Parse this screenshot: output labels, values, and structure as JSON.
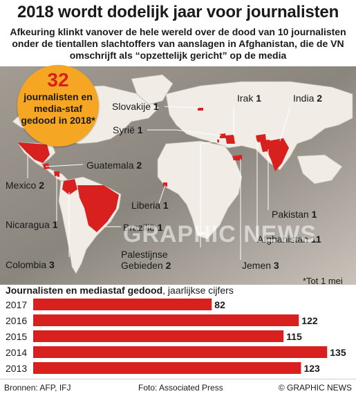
{
  "title": "2018 wordt dodelijk jaar voor journalisten",
  "subtitle": "Afkeuring klinkt vanover de hele wereld over de dood van 10 journalisten onder de tientallen slachtoffers van aanslagen in Afghanistan, die de VN omschrijft als “opzettelijk gericht” op de media",
  "badge": {
    "number": "32",
    "text": "journalisten en media-staf gedood in 2018*"
  },
  "countries": [
    {
      "name": "Slovakije",
      "count": "1"
    },
    {
      "name": "Irak",
      "count": "1"
    },
    {
      "name": "India",
      "count": "2"
    },
    {
      "name": "Syrië",
      "count": "1"
    },
    {
      "name": "Guatemala",
      "count": "2"
    },
    {
      "name": "Mexico",
      "count": "2"
    },
    {
      "name": "Liberia",
      "count": "1"
    },
    {
      "name": "Nicaragua",
      "count": "1"
    },
    {
      "name": "Brazilië",
      "count": "1"
    },
    {
      "name": "Pakistan",
      "count": "1"
    },
    {
      "name": "Afghanistan",
      "count": "11"
    },
    {
      "name": "Palestijnse Gebieden",
      "count": "2"
    },
    {
      "name": "Colombia",
      "count": "3"
    },
    {
      "name": "Jemen",
      "count": "3"
    }
  ],
  "palestijnse_line1": "Palestijnse",
  "palestijnse_line2": "Gebieden",
  "watermark": "GRAPHIC NEWS",
  "footnote": "*Tot 1 mei",
  "chart_title_bold": "Journalisten en mediastaf gedood",
  "chart_title_rest": ", jaarlijkse cijfers",
  "chart_data": {
    "type": "bar",
    "orientation": "horizontal",
    "categories": [
      "2017",
      "2016",
      "2015",
      "2014",
      "2013"
    ],
    "values": [
      82,
      122,
      115,
      135,
      123
    ],
    "title": "Journalisten en mediastaf gedood, jaarlijkse cijfers",
    "bar_color": "#d8211f"
  },
  "footer": {
    "sources": "Bronnen: AFP, IFJ",
    "photo": "Foto: Associated Press",
    "copyright": "© GRAPHIC NEWS"
  },
  "colors": {
    "highlight": "#d8211f",
    "badge": "#f5a623",
    "land": "#f1ece6",
    "map_bg": "#8d8880"
  }
}
